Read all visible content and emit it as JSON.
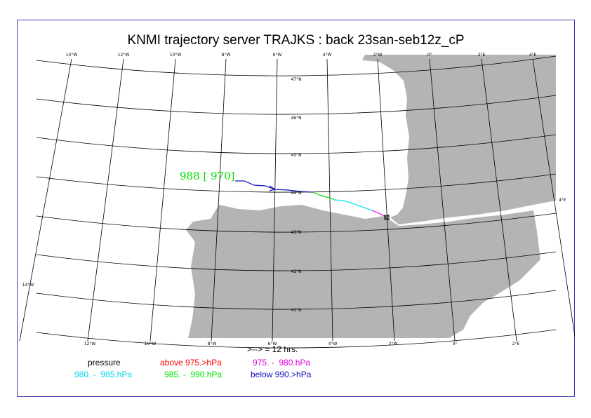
{
  "title": "KNMI trajectory server TRAJKS : back 23san-seb12z_cP",
  "map": {
    "top_lon_labels": [
      "14°W",
      "12°W",
      "10°W",
      "8°W",
      "6°W",
      "4°W",
      "2°W",
      "0°",
      "2°E",
      "4°E"
    ],
    "bottom_lon_labels": [
      "12°W",
      "10°W",
      "8°W",
      "6°W",
      "4°W",
      "2°W",
      "0°",
      "2°E"
    ],
    "lat_labels": [
      "47°N",
      "46°N",
      "45°N",
      "44°N",
      "43°N",
      "42°N",
      "41°N"
    ],
    "left_edge_label": "14°W",
    "right_edge_label": "4°E",
    "land_color": "#b4b4b4",
    "grid_color": "#000000"
  },
  "trajectory": {
    "start_label": "988 [ 970]",
    "start_label_color": "#00e000",
    "segments": [
      {
        "class": "below 990.>hPa",
        "color": "#1010c0"
      },
      {
        "class": "985. -  990.hPa",
        "color": "#00e000"
      },
      {
        "class": "980. -  985.hPa",
        "color": "#00e8f0"
      },
      {
        "class": "975. -  980.hPa",
        "color": "#e000e0"
      }
    ]
  },
  "arrow_note": ">--> = 12 hrs.",
  "legend": {
    "header": "pressure",
    "items": [
      {
        "label": "above 975.>hPa",
        "color": "#ff0000"
      },
      {
        "label": "975. -  980.hPa",
        "color": "#e000e0"
      },
      {
        "label": "980. -  985.hPa",
        "color": "#00d8e8"
      },
      {
        "label": "985. -  990.hPa",
        "color": "#00e000"
      },
      {
        "label": "below 990.>hPa",
        "color": "#1010c0"
      }
    ]
  }
}
